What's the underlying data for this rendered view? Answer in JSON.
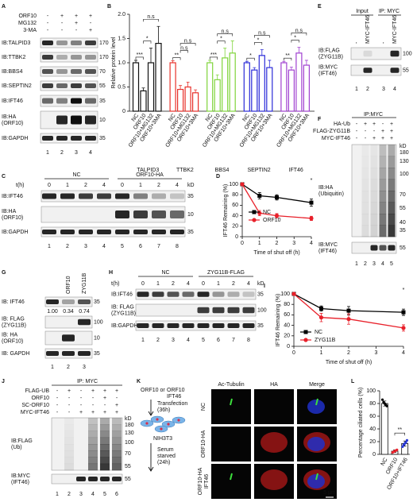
{
  "panels": {
    "A": {
      "letter": "A",
      "conditions": [
        {
          "name": "ORF10",
          "signs": [
            "-",
            "+",
            "+",
            "+"
          ]
        },
        {
          "name": "MG132",
          "signs": [
            "-",
            "-",
            "+",
            "-"
          ]
        },
        {
          "name": "3-MA",
          "signs": [
            "-",
            "-",
            "-",
            "+"
          ]
        }
      ],
      "blots": [
        {
          "label": [
            "IB:TALPID3"
          ],
          "kd": 170
        },
        {
          "label": [
            "IB:TTBK2"
          ],
          "kd": 170
        },
        {
          "label": [
            "IB:BBS4"
          ],
          "kd": 70
        },
        {
          "label": [
            "IB:SEPTIN2"
          ],
          "kd": 55
        },
        {
          "label": [
            "IB:IFT46"
          ],
          "kd": 35
        },
        {
          "label": [
            "IB:HA",
            "(ORF10)"
          ],
          "kd": 10
        },
        {
          "label": [
            "IB:GAPDH"
          ],
          "kd": 35
        }
      ],
      "lanes": [
        1,
        2,
        3,
        4
      ]
    },
    "B": {
      "letter": "B",
      "chart_data": {
        "type": "bar",
        "y_label": "Relative protein level",
        "categories": [
          "NC",
          "ORF10",
          "ORF10+MG132",
          "ORF10+3MA"
        ],
        "series": [
          {
            "name": "TALPID3",
            "color": "#111111",
            "values": [
              1,
              0.42,
              1.0,
              1.4
            ],
            "errors": [
              0.05,
              0.06,
              0.3,
              0.35
            ],
            "significance": [
              "***",
              "*",
              "n.s"
            ]
          },
          {
            "name": "TTBK2",
            "color": "#e8302a",
            "values": [
              1,
              0.45,
              0.5,
              0.38
            ],
            "errors": [
              0.04,
              0.08,
              0.1,
              0.06
            ],
            "significance": [
              "**",
              "n.s",
              "n.s"
            ]
          },
          {
            "name": "BBS4",
            "color": "#7fd43a",
            "values": [
              1,
              0.65,
              1.1,
              1.2
            ],
            "errors": [
              0.05,
              0.1,
              0.2,
              0.25
            ],
            "significance": [
              "***",
              "*",
              "n.s"
            ]
          },
          {
            "name": "SEPTIN2",
            "color": "#2a2ad8",
            "values": [
              1,
              0.85,
              1.15,
              0.9
            ],
            "errors": [
              0.03,
              0.05,
              0.12,
              0.15
            ],
            "significance": [
              "*",
              "*",
              "n.s"
            ]
          },
          {
            "name": "IFT46",
            "color": "#a040d0",
            "values": [
              1,
              0.85,
              1.2,
              0.95
            ],
            "errors": [
              0.03,
              0.06,
              0.12,
              0.1
            ],
            "significance": [
              "**",
              "*",
              "n.s"
            ]
          }
        ],
        "ylim": [
          0,
          2
        ],
        "yticks": [
          0,
          0.5,
          {
            "value": 1,
            "label": "1.0"
          },
          1.5,
          {
            "value": 2,
            "label": "2.0"
          }
        ]
      }
    },
    "C": {
      "letter": "C",
      "groups": [
        "NC",
        "ORF10-HA"
      ],
      "time_label": "t(h)",
      "times": [
        0,
        1,
        2,
        4,
        0,
        1,
        2,
        4
      ],
      "kd_label": "kD",
      "blots": [
        {
          "label": [
            "IB:IFT46"
          ],
          "kd": 35
        },
        {
          "label": [
            "IB:HA",
            "(ORF10)"
          ],
          "kd": 10
        },
        {
          "label": [
            "IB:GAPDH"
          ],
          "kd": 35
        }
      ],
      "lanes": [
        1,
        2,
        3,
        4,
        5,
        6,
        7,
        8
      ]
    },
    "D": {
      "letter": "D",
      "chart_data": {
        "type": "line",
        "y_label": "IFT46 Remaining (%)",
        "x_label": "Time of shut off (h)",
        "x": [
          0,
          1,
          2,
          4
        ],
        "xlim": [
          0,
          4
        ],
        "xticks": [
          0,
          1,
          2,
          3,
          4
        ],
        "ylim": [
          0,
          100
        ],
        "yticks": [
          0,
          20,
          40,
          60,
          80,
          100
        ],
        "series": [
          {
            "name": "NC",
            "color": "#000000",
            "marker": "square",
            "values": [
              100,
              78,
              75,
              65
            ],
            "errors": [
              0,
              6,
              5,
              7
            ]
          },
          {
            "name": "ORF10",
            "color": "#e8202a",
            "marker": "circle",
            "values": [
              100,
              45,
              40,
              35
            ],
            "errors": [
              0,
              5,
              4,
              4
            ]
          }
        ],
        "annotation": "*",
        "legend": "center left"
      }
    },
    "E": {
      "letter": "E",
      "headers": [
        "Input",
        "IP: MYC"
      ],
      "columns": [
        "-",
        "MYC-IFT46",
        "-",
        "MYC-IFT46"
      ],
      "blots": [
        {
          "label": [
            "IB:FLAG",
            "(ZYG11B)"
          ],
          "kd": 100
        },
        {
          "label": [
            "IB:MYC",
            "(IFT46)"
          ],
          "kd": 55
        }
      ],
      "lanes": [
        1,
        2,
        3,
        4
      ]
    },
    "F": {
      "letter": "F",
      "header": "IP:MYC",
      "conditions": [
        {
          "name": "HA-Ub",
          "signs": [
            "-",
            "+",
            "+",
            "-",
            "+"
          ]
        },
        {
          "name": "FLAG-ZYG11B",
          "signs": [
            "-",
            "-",
            "-",
            "+",
            "+"
          ]
        },
        {
          "name": "MYC-IFT46",
          "signs": [
            "-",
            "-",
            "+",
            "+",
            "+"
          ]
        }
      ],
      "kd_label": "kD",
      "blots": [
        {
          "label": [
            "IB:HA",
            "(Ubiquitin)"
          ],
          "kd_ladder": [
            180,
            130,
            100,
            70,
            55,
            40,
            35
          ]
        },
        {
          "label": [
            "IB:MYC",
            "(IFT46)"
          ],
          "kd": 55
        }
      ],
      "lanes": [
        1,
        2,
        3,
        4,
        5
      ]
    },
    "G": {
      "letter": "G",
      "columns": [
        "ORF10",
        "ZYG11B"
      ],
      "blots": [
        {
          "label": [
            "IB: IFT46"
          ],
          "kd": 35
        },
        {
          "label": [
            "IB: FLAG",
            "(ZYG11B)"
          ],
          "kd": 100
        },
        {
          "label": [
            "IB: HA",
            "(ORF10)"
          ],
          "kd": 10
        },
        {
          "label": [
            "IB: GAPDH"
          ],
          "kd": 35
        }
      ],
      "ratios": [
        "1.00",
        "0.34",
        "0.74"
      ],
      "lanes": [
        1,
        2,
        3
      ]
    },
    "H": {
      "letter": "H",
      "groups": [
        "NC",
        "ZYG11B-FLAG"
      ],
      "time_label": "t(h)",
      "times": [
        0,
        1,
        2,
        4,
        0,
        1,
        2,
        4
      ],
      "kd_label": "kD",
      "blots": [
        {
          "label": [
            "IB:IFT46"
          ],
          "kd": 35
        },
        {
          "label": [
            "IB: FLAG",
            "(ZYG11B)"
          ],
          "kd": 100
        },
        {
          "label": [
            "IB:GAPDH"
          ],
          "kd": 35
        }
      ],
      "lanes": [
        1,
        2,
        3,
        4,
        5,
        6,
        7,
        8
      ]
    },
    "I": {
      "letter": "I",
      "chart_data": {
        "type": "line",
        "y_label": "IFT46 Remaining (%)",
        "x_label": "Time of shut off (h)",
        "x": [
          0,
          1,
          2,
          4
        ],
        "xlim": [
          0,
          4
        ],
        "xticks": [
          0,
          1,
          2,
          3,
          4
        ],
        "ylim": [
          0,
          100
        ],
        "yticks": [
          0,
          20,
          40,
          60,
          80,
          100
        ],
        "series": [
          {
            "name": "NC",
            "color": "#000000",
            "marker": "square",
            "values": [
              100,
              72,
              68,
              65
            ],
            "errors": [
              0,
              5,
              8,
              6
            ]
          },
          {
            "name": "ZYG11B",
            "color": "#e8202a",
            "marker": "circle",
            "values": [
              100,
              55,
              52,
              35
            ],
            "errors": [
              0,
              8,
              10,
              6
            ]
          }
        ],
        "annotation": "*",
        "legend": "lower left"
      }
    },
    "J": {
      "letter": "J",
      "header": "IP: MYC",
      "conditions": [
        {
          "name": "FLAG-UB",
          "signs": [
            "-",
            "+",
            "-",
            "+",
            "+",
            "+"
          ]
        },
        {
          "name": "ORF10",
          "signs": [
            "-",
            "-",
            "-",
            "-",
            "+",
            "-"
          ]
        },
        {
          "name": "SC-ORF10",
          "signs": [
            "-",
            "-",
            "-",
            "-",
            "-",
            "+"
          ]
        },
        {
          "name": "MYC-IFT46",
          "signs": [
            "-",
            "-",
            "+",
            "+",
            "+",
            "+"
          ]
        }
      ],
      "kd_label": "kD",
      "blots": [
        {
          "label": [
            "IB:FLAG",
            "(Ub)"
          ],
          "kd_ladder": [
            180,
            130,
            100,
            70,
            55
          ]
        },
        {
          "label": [
            "IB:MYC",
            "(IFT46)"
          ],
          "kd": 55
        }
      ],
      "lanes": [
        1,
        2,
        3,
        4,
        5,
        6
      ]
    },
    "K": {
      "letter": "K",
      "protocol": [
        "ORF10 or",
        "ORF10",
        "IFT46",
        "Transfection",
        "(36h)",
        "NIH3T3",
        "Serum",
        "starved",
        "(24h)"
      ],
      "columns": [
        {
          "name": "Ac-Tubulin",
          "color": "#2fb82f"
        },
        {
          "name": "HA",
          "color": "#e02020"
        },
        {
          "name": "Merge",
          "color": "#111111"
        }
      ],
      "rows": [
        [
          "NC"
        ],
        [
          "ORF10-HA"
        ],
        [
          "ORF10-HA",
          "IFT46"
        ]
      ],
      "scale_bar": "5 μm"
    },
    "L": {
      "letter": "L",
      "chart_data": {
        "type": "bar",
        "y_label": "Percentage ciliated cells (%)",
        "categories": [
          "NC",
          "ORF10",
          "ORF10+IFT46"
        ],
        "values": [
          80,
          5,
          17
        ],
        "errors": [
          4,
          2,
          4
        ],
        "points": [
          [
            86,
            82,
            80,
            78,
            76
          ],
          [
            3,
            4,
            5,
            6,
            7
          ],
          [
            12,
            15,
            17,
            19,
            22
          ]
        ],
        "colors": [
          "#000000",
          "#e8202a",
          "#2a3ad8"
        ],
        "ylim": [
          0,
          100
        ],
        "yticks": [
          0,
          20,
          40,
          60,
          80,
          100
        ],
        "annotation": "**"
      }
    }
  }
}
